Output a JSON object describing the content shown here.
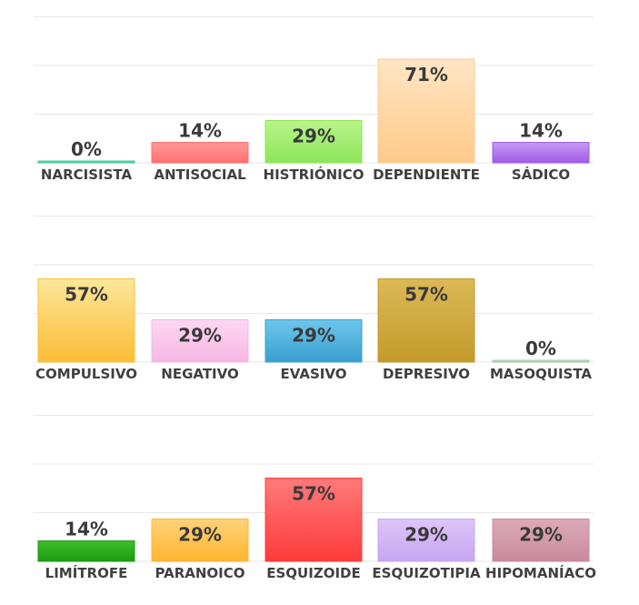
{
  "chart_data": [
    {
      "type": "bar",
      "ylim": [
        0,
        100
      ],
      "grid": true,
      "categories": [
        "NARCISISTA",
        "ANTISOCIAL",
        "HISTRIÓNICO",
        "DEPENDIENTE",
        "SÁDICO"
      ],
      "values": [
        0,
        14,
        29,
        71,
        14
      ],
      "labels": [
        "0%",
        "14%",
        "29%",
        "71%",
        "14%"
      ],
      "colors": [
        [
          "#8ee0c8",
          "#3cc49a"
        ],
        [
          "#ff9a9a",
          "#ff6f6f"
        ],
        [
          "#b8f58a",
          "#8ee55a"
        ],
        [
          "#ffe6c4",
          "#ffc98a"
        ],
        [
          "#c79bf5",
          "#a05ae8"
        ]
      ]
    },
    {
      "type": "bar",
      "ylim": [
        0,
        100
      ],
      "grid": true,
      "categories": [
        "COMPULSIVO",
        "NEGATIVO",
        "EVASIVO",
        "DEPRESIVO",
        "MASOQUISTA"
      ],
      "values": [
        57,
        29,
        29,
        57,
        0
      ],
      "labels": [
        "57%",
        "29%",
        "29%",
        "57%",
        "0%"
      ],
      "colors": [
        [
          "#fce79a",
          "#fbbd37"
        ],
        [
          "#fcd8f0",
          "#f6b6e5"
        ],
        [
          "#6ec6ea",
          "#3a9fd0"
        ],
        [
          "#dcb955",
          "#c49a2c"
        ],
        [
          "#cfe6cf",
          "#9fc9a4"
        ]
      ]
    },
    {
      "type": "bar",
      "ylim": [
        0,
        100
      ],
      "grid": true,
      "categories": [
        "LIMÍTROFE",
        "PARANOICO",
        "ESQUIZOIDE",
        "ESQUIZOTIPIA",
        "HIPOMANÍACO"
      ],
      "values": [
        14,
        29,
        57,
        29,
        29
      ],
      "labels": [
        "14%",
        "29%",
        "57%",
        "29%",
        "29%"
      ],
      "colors": [
        [
          "#3cbf2a",
          "#1e9a12"
        ],
        [
          "#ffd27a",
          "#ffb52e"
        ],
        [
          "#ff7a7a",
          "#ff3a3a"
        ],
        [
          "#dcc6f8",
          "#c8a5f2"
        ],
        [
          "#dcaab8",
          "#c98a9c"
        ]
      ]
    }
  ]
}
